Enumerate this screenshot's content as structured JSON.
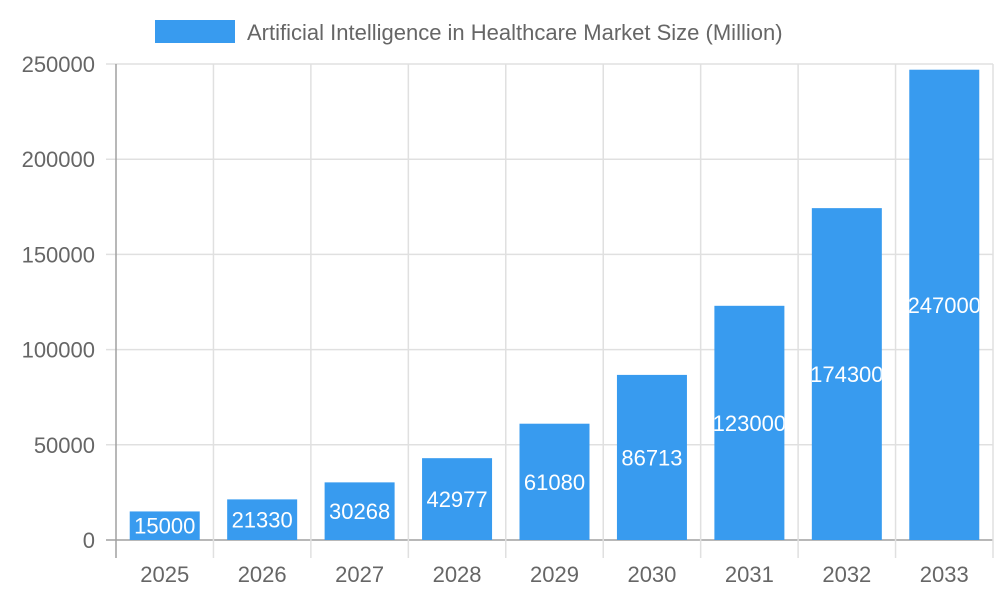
{
  "chart_data": {
    "type": "bar",
    "title": "",
    "xlabel": "",
    "ylabel": "",
    "categories": [
      "2025",
      "2026",
      "2027",
      "2028",
      "2029",
      "2030",
      "2031",
      "2032",
      "2033"
    ],
    "series": [
      {
        "name": "Artificial Intelligence in Healthcare Market Size (Million)",
        "values": [
          15000,
          21330,
          30268,
          42977,
          61080,
          86713,
          123000,
          174300,
          247000
        ]
      }
    ],
    "ylim": [
      0,
      250000
    ],
    "yticks": [
      "0",
      "50000",
      "100000",
      "150000",
      "200000",
      "250000"
    ],
    "grid": true,
    "legend": "top",
    "data_labels": true,
    "colors": {
      "bar": "#389BEF",
      "grid": "#e0e0e0",
      "axis": "#a0a0a0",
      "text": "#666666",
      "label": "#ffffff"
    }
  }
}
